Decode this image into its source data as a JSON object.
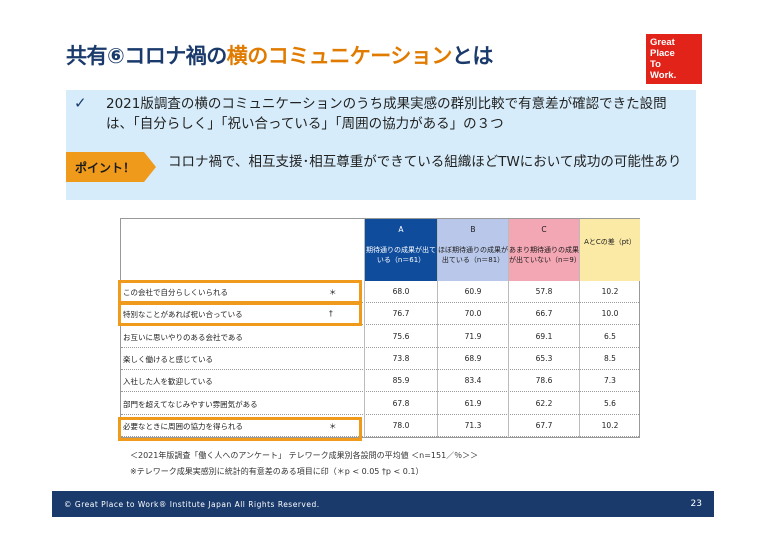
{
  "title": {
    "prefix": "共有⑥コロナ禍の",
    "accent": "横のコミュニケーション",
    "suffix": "とは"
  },
  "logo": {
    "lines": [
      "Great",
      "Place",
      "To",
      "Work."
    ]
  },
  "summary": {
    "check_icon": "✓",
    "text": "2021版調査の横のコミュニケーションのうち成果実感の群別比較で有意差が確認できた設問は、「自分らしく」「祝い合っている」「周囲の協力がある」の３つ",
    "point_label": "ポイント！",
    "point_text": "コロナ禍で、相互支援･相互尊重ができている組織ほどTWにおいて成功の可能性あり"
  },
  "table": {
    "columns": [
      {
        "letter": "A",
        "desc": "期待通りの成果が出ている（n＝61）",
        "color": "#0f4c9c"
      },
      {
        "letter": "B",
        "desc": "ほぼ期待通りの成果が出ている（n＝81）",
        "color": "#b9c8ea"
      },
      {
        "letter": "C",
        "desc": "あまり期待通りの成果が出ていない（n＝9）",
        "color": "#f3a6b3"
      },
      {
        "letter": "",
        "desc": "AとCの差（pt）",
        "color": "#fbe9a6"
      }
    ],
    "rows": [
      {
        "label": "この会社で自分らしくいられる",
        "mark": "＊",
        "a": "68.0",
        "b": "60.9",
        "c": "57.8",
        "d": "10.2"
      },
      {
        "label": "特別なことがあれば祝い合っている",
        "mark": "†",
        "a": "76.7",
        "b": "70.0",
        "c": "66.7",
        "d": "10.0"
      },
      {
        "label": "お互いに思いやりのある会社である",
        "mark": "",
        "a": "75.6",
        "b": "71.9",
        "c": "69.1",
        "d": "6.5"
      },
      {
        "label": "楽しく働けると感じている",
        "mark": "",
        "a": "73.8",
        "b": "68.9",
        "c": "65.3",
        "d": "8.5"
      },
      {
        "label": "入社した人を歓迎している",
        "mark": "",
        "a": "85.9",
        "b": "83.4",
        "c": "78.6",
        "d": "7.3"
      },
      {
        "label": "部門を超えてなじみやすい雰囲気がある",
        "mark": "",
        "a": "67.8",
        "b": "61.9",
        "c": "62.2",
        "d": "5.6"
      },
      {
        "label": "必要なときに周囲の協力を得られる",
        "mark": "＊",
        "a": "78.0",
        "b": "71.3",
        "c": "67.7",
        "d": "10.2"
      }
    ]
  },
  "notes": {
    "line1": "＜2021年版調査「働く人へのアンケート」 テレワーク成果別各設問の平均値 ＜n=151／％＞＞",
    "line2": "※テレワーク成果実感別に統計的有意差のある項目に印（＊p < 0.05 †p < 0.1）"
  },
  "footer": {
    "copyright": "© Great Place to Work® Institute Japan All Rights Reserved.",
    "page": "23"
  },
  "colors": {
    "title_dark": "#1a3a6c",
    "title_accent": "#e07b00",
    "highlight": "#f09a1b",
    "summary_bg": "#d6ecfa",
    "footer_bg": "#1a3a6c",
    "logo_bg": "#e2231a"
  }
}
